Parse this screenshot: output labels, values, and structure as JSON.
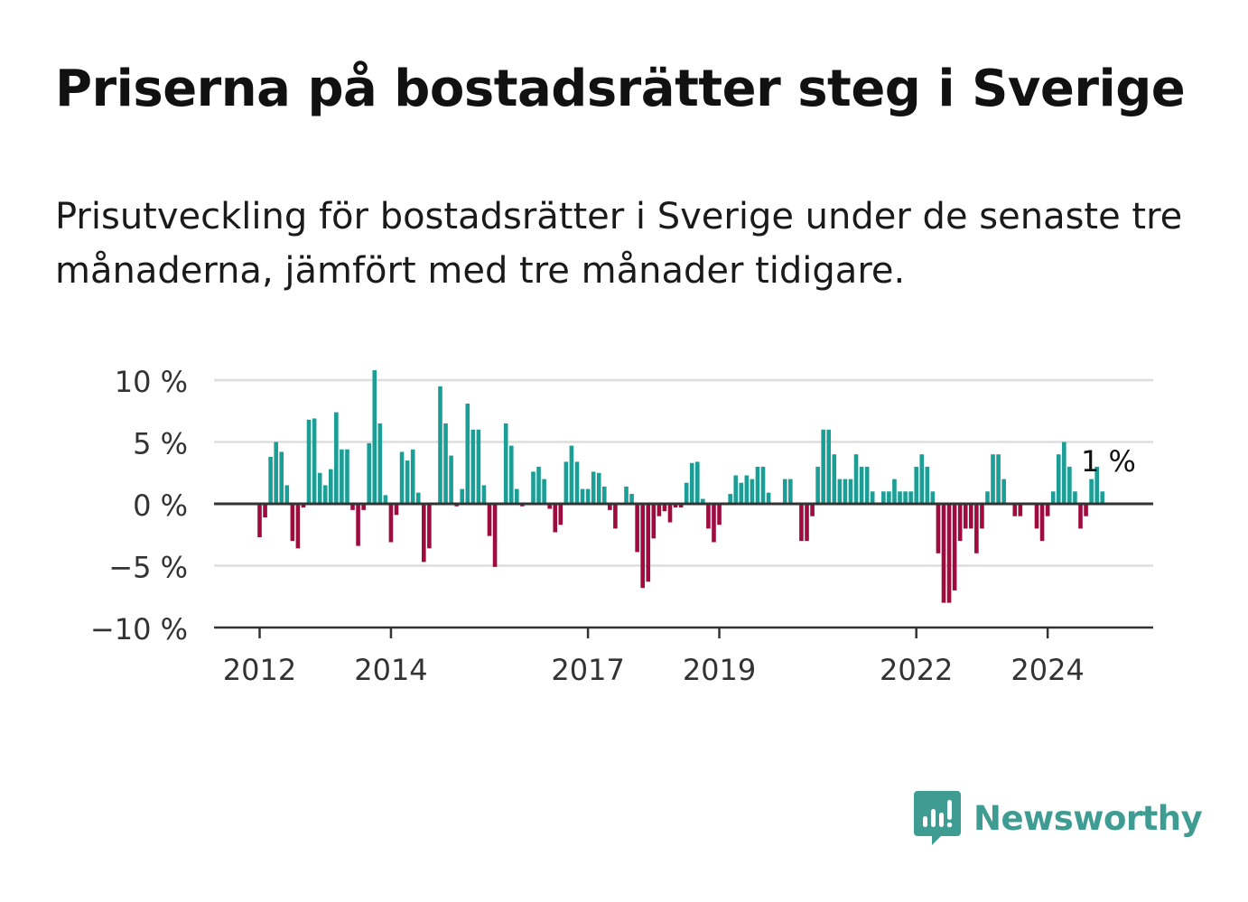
{
  "title": "Priserna på bostadsrätter steg i Sverige",
  "subtitle": "Prisutveckling för bostadsrätter i Sverige under de senaste tre månaderna, jämfört med tre månader tidigare.",
  "brand": {
    "name": "Newsworthy",
    "icon": "bar-chart-speech-bubble-icon",
    "color": "#3f9c93"
  },
  "colors": {
    "positive": "#1a9e96",
    "negative": "#9e0b3e",
    "grid": "#dddddd",
    "axis": "#333333"
  },
  "chart_data": {
    "type": "bar",
    "x_start": "2012-01",
    "frequency": "monthly",
    "ylim": [
      -10,
      10
    ],
    "yticks": [
      10,
      5,
      0,
      -5,
      -10
    ],
    "ytick_labels": [
      "10 %",
      "5 %",
      "0 %",
      "−5 %",
      "−10 %"
    ],
    "xtick_labels": [
      {
        "label": "2012",
        "at": "2012-01"
      },
      {
        "label": "2014",
        "at": "2014-01"
      },
      {
        "label": "2017",
        "at": "2017-01"
      },
      {
        "label": "2019",
        "at": "2019-01"
      },
      {
        "label": "2022",
        "at": "2022-01"
      },
      {
        "label": "2024",
        "at": "2024-01"
      }
    ],
    "last_value_label": "1 %",
    "grid": true,
    "values": [
      -2.7,
      -1.1,
      3.8,
      5.0,
      4.2,
      1.5,
      -3.0,
      -3.6,
      -0.3,
      6.8,
      6.9,
      2.5,
      1.5,
      2.8,
      7.4,
      4.4,
      4.4,
      -0.5,
      -3.4,
      -0.5,
      4.9,
      10.8,
      6.5,
      0.7,
      -3.1,
      -0.9,
      4.2,
      3.5,
      4.4,
      0.9,
      -4.7,
      -3.6,
      0.0,
      9.5,
      6.5,
      3.9,
      -0.2,
      1.2,
      8.1,
      6.0,
      6.0,
      1.5,
      -2.6,
      -5.1,
      0.0,
      6.5,
      4.7,
      1.2,
      -0.2,
      0.0,
      2.6,
      3.0,
      2.0,
      -0.4,
      -2.3,
      -1.7,
      3.4,
      4.7,
      3.4,
      1.2,
      1.2,
      2.6,
      2.5,
      1.4,
      -0.5,
      -2.0,
      0.0,
      1.4,
      0.8,
      -3.9,
      -6.8,
      -6.3,
      -2.8,
      -1.0,
      -0.6,
      -1.5,
      -0.3,
      -0.3,
      1.7,
      3.3,
      3.4,
      0.4,
      -2.0,
      -3.1,
      -1.7,
      0.0,
      0.8,
      2.3,
      1.7,
      2.3,
      2.0,
      3.0,
      3.0,
      0.9,
      0.0,
      0.0,
      2.0,
      2.0,
      0.0,
      -3.0,
      -3.0,
      -1.0,
      3.0,
      6.0,
      6.0,
      4.0,
      2.0,
      2.0,
      2.0,
      4.0,
      3.0,
      3.0,
      1.0,
      0.0,
      1.0,
      1.0,
      2.0,
      1.0,
      1.0,
      1.0,
      3.0,
      4.0,
      3.0,
      1.0,
      -4.0,
      -8.0,
      -8.0,
      -7.0,
      -3.0,
      -2.0,
      -2.0,
      -4.0,
      -2.0,
      1.0,
      4.0,
      4.0,
      2.0,
      0.0,
      -1.0,
      -1.0,
      0.0,
      0.0,
      -2.0,
      -3.0,
      -1.0,
      1.0,
      4.0,
      5.0,
      3.0,
      1.0,
      -2.0,
      -1.0,
      2.0,
      3.0,
      1.0
    ]
  }
}
